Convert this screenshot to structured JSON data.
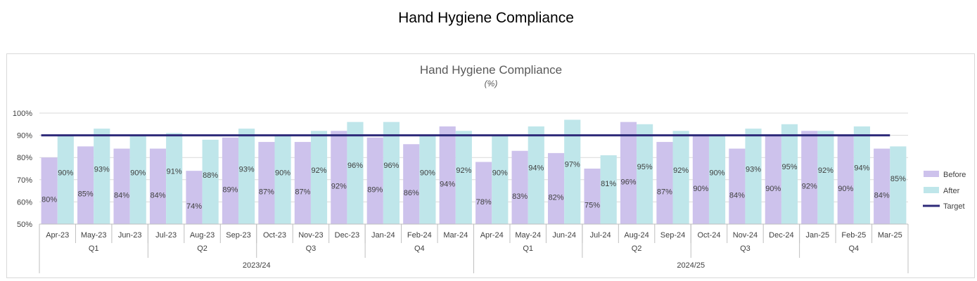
{
  "page": {
    "title": "Hand Hygiene Compliance"
  },
  "colors": {
    "before": "#cdc2ec",
    "after": "#bfe6ea",
    "target": "#2e2a79",
    "grid": "#d9d9d9",
    "axis": "#bfbfbf"
  },
  "chart_data": {
    "type": "bar",
    "title": "Hand Hygiene Compliance",
    "subtitle": "(%)",
    "xlabel": "",
    "ylabel": "",
    "ylim": [
      50,
      100
    ],
    "yticks": [
      "50%",
      "60%",
      "70%",
      "80%",
      "90%",
      "100%"
    ],
    "yticks_values": [
      50,
      60,
      70,
      80,
      90,
      100
    ],
    "grid": true,
    "legend_position": "right",
    "categories": [
      "Apr-23",
      "May-23",
      "Jun-23",
      "Jul-23",
      "Aug-23",
      "Sep-23",
      "Oct-23",
      "Nov-23",
      "Dec-23",
      "Jan-24",
      "Feb-24",
      "Mar-24",
      "Apr-24",
      "May-24",
      "Jun-24",
      "Jul-24",
      "Aug-24",
      "Sep-24",
      "Oct-24",
      "Nov-24",
      "Dec-24",
      "Jan-25",
      "Feb-25",
      "Mar-25"
    ],
    "quarters": [
      "Q1",
      "Q2",
      "Q3",
      "Q4",
      "Q1",
      "Q2",
      "Q3",
      "Q4"
    ],
    "years": [
      "2023/24",
      "2024/25"
    ],
    "series": [
      {
        "name": "Before",
        "type": "bar",
        "values": [
          80,
          85,
          84,
          84,
          74,
          89,
          87,
          87,
          92,
          89,
          86,
          94,
          78,
          83,
          82,
          75,
          96,
          87,
          90,
          84,
          90,
          92,
          90,
          84
        ],
        "labels": [
          "80%",
          "85%",
          "84%",
          "84%",
          "74%",
          "89%",
          "87%",
          "87%",
          "92%",
          "89%",
          "86%",
          "94%",
          "78%",
          "83%",
          "82%",
          "75%",
          "96%",
          "87%",
          "90%",
          "84%",
          "90%",
          "92%",
          "90%",
          "84%"
        ]
      },
      {
        "name": "After",
        "type": "bar",
        "values": [
          90,
          93,
          90,
          91,
          88,
          93,
          90,
          92,
          96,
          96,
          90,
          92,
          90,
          94,
          97,
          81,
          95,
          92,
          90,
          93,
          95,
          92,
          94,
          85
        ],
        "labels": [
          "90%",
          "93%",
          "90%",
          "91%",
          "88%",
          "93%",
          "90%",
          "92%",
          "96%",
          "96%",
          "90%",
          "92%",
          "90%",
          "94%",
          "97%",
          "81%",
          "95%",
          "92%",
          "90%",
          "93%",
          "95%",
          "92%",
          "94%",
          "85%"
        ]
      },
      {
        "name": "Target",
        "type": "line",
        "values": [
          90,
          90,
          90,
          90,
          90,
          90,
          90,
          90,
          90,
          90,
          90,
          90,
          90,
          90,
          90,
          90,
          90,
          90,
          90,
          90,
          90,
          90,
          90,
          90
        ]
      }
    ]
  }
}
